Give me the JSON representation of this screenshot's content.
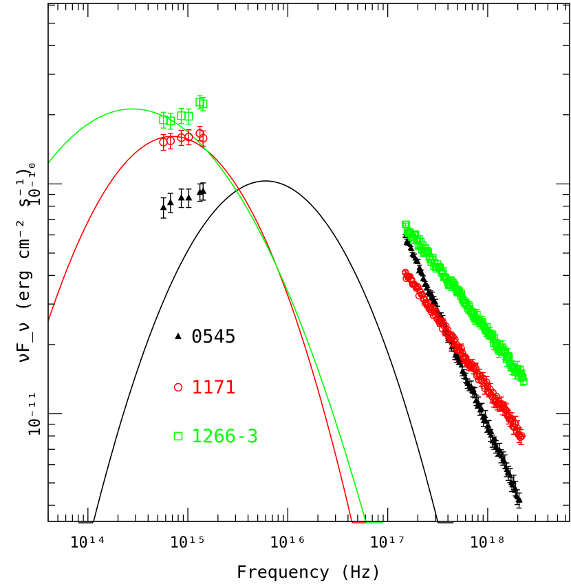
{
  "chart_data": {
    "type": "scatter",
    "title": "",
    "xlabel": "Frequency (Hz)",
    "ylabel": "νF_ν (erg cm⁻² s⁻¹)",
    "xscale": "log",
    "yscale": "log",
    "xlim": [
      40000000000000.0,
      6.6e+18
    ],
    "ylim": [
      3.4e-12,
      6.1e-10
    ],
    "grid": false,
    "legend_position": "lower-left",
    "x_tick_labels": [
      "10¹⁴",
      "10¹⁵",
      "10¹⁶",
      "10¹⁷",
      "10¹⁸"
    ],
    "y_tick_labels": [
      "10⁻¹¹",
      "10⁻¹⁰"
    ],
    "series": [
      {
        "name": "0545",
        "color": "#000000",
        "marker": "filled-triangle",
        "optical_points": [
          {
            "x": 570000000000000.0,
            "y": 7.9e-11,
            "err": 8e-12
          },
          {
            "x": 670000000000000.0,
            "y": 8.3e-11,
            "err": 8e-12
          },
          {
            "x": 860000000000000.0,
            "y": 8.7e-11,
            "err": 8e-12
          },
          {
            "x": 1020000000000000.0,
            "y": 8.7e-11,
            "err": 8e-12
          },
          {
            "x": 1320000000000000.0,
            "y": 9.2e-11,
            "err": 8e-12
          },
          {
            "x": 1420000000000000.0,
            "y": 9.3e-11,
            "err": 8e-12
          }
        ],
        "xray": {
          "x_start": 1.5e+17,
          "y_start": 5.9e-11,
          "x_end": 2.1e+18,
          "y_end": 4.2e-12,
          "err": 2e-13
        },
        "model": {
          "peak_x": 6000000000000000.0,
          "peak_y": 1.03e-10,
          "curvature": 0.5
        }
      },
      {
        "name": "1171",
        "color": "#ff0000",
        "marker": "open-circle",
        "optical_points": [
          {
            "x": 570000000000000.0,
            "y": 1.52e-10,
            "err": 1.2e-11
          },
          {
            "x": 670000000000000.0,
            "y": 1.54e-10,
            "err": 1.2e-11
          },
          {
            "x": 860000000000000.0,
            "y": 1.59e-10,
            "err": 1.2e-11
          },
          {
            "x": 1020000000000000.0,
            "y": 1.6e-10,
            "err": 1.2e-11
          },
          {
            "x": 1320000000000000.0,
            "y": 1.66e-10,
            "err": 1.2e-11
          },
          {
            "x": 1420000000000000.0,
            "y": 1.58e-10,
            "err": 1.2e-11
          }
        ],
        "xray": {
          "x_start": 1.5e+17,
          "y_start": 4.1e-11,
          "x_end": 2.2e+18,
          "y_end": 8e-12,
          "err": 3e-13
        },
        "model": {
          "peak_x": 700000000000000.0,
          "peak_y": 1.61e-10,
          "curvature": 0.52
        }
      },
      {
        "name": "1266-3",
        "color": "#00ff00",
        "marker": "open-square",
        "optical_points": [
          {
            "x": 570000000000000.0,
            "y": 1.9e-10,
            "err": 1.5e-11
          },
          {
            "x": 670000000000000.0,
            "y": 1.88e-10,
            "err": 1.5e-11
          },
          {
            "x": 860000000000000.0,
            "y": 1.98e-10,
            "err": 1.5e-11
          },
          {
            "x": 1020000000000000.0,
            "y": 1.97e-10,
            "err": 1.5e-11
          },
          {
            "x": 1320000000000000.0,
            "y": 2.27e-10,
            "err": 1.5e-11
          },
          {
            "x": 1420000000000000.0,
            "y": 2.23e-10,
            "err": 1.5e-11
          }
        ],
        "xray": {
          "x_start": 1.5e+17,
          "y_start": 6.6e-11,
          "x_end": 2.3e+18,
          "y_end": 1.42e-11,
          "err": 4e-13
        },
        "model": {
          "peak_x": 280000000000000.0,
          "peak_y": 2.12e-10,
          "curvature": 0.33
        }
      }
    ]
  }
}
